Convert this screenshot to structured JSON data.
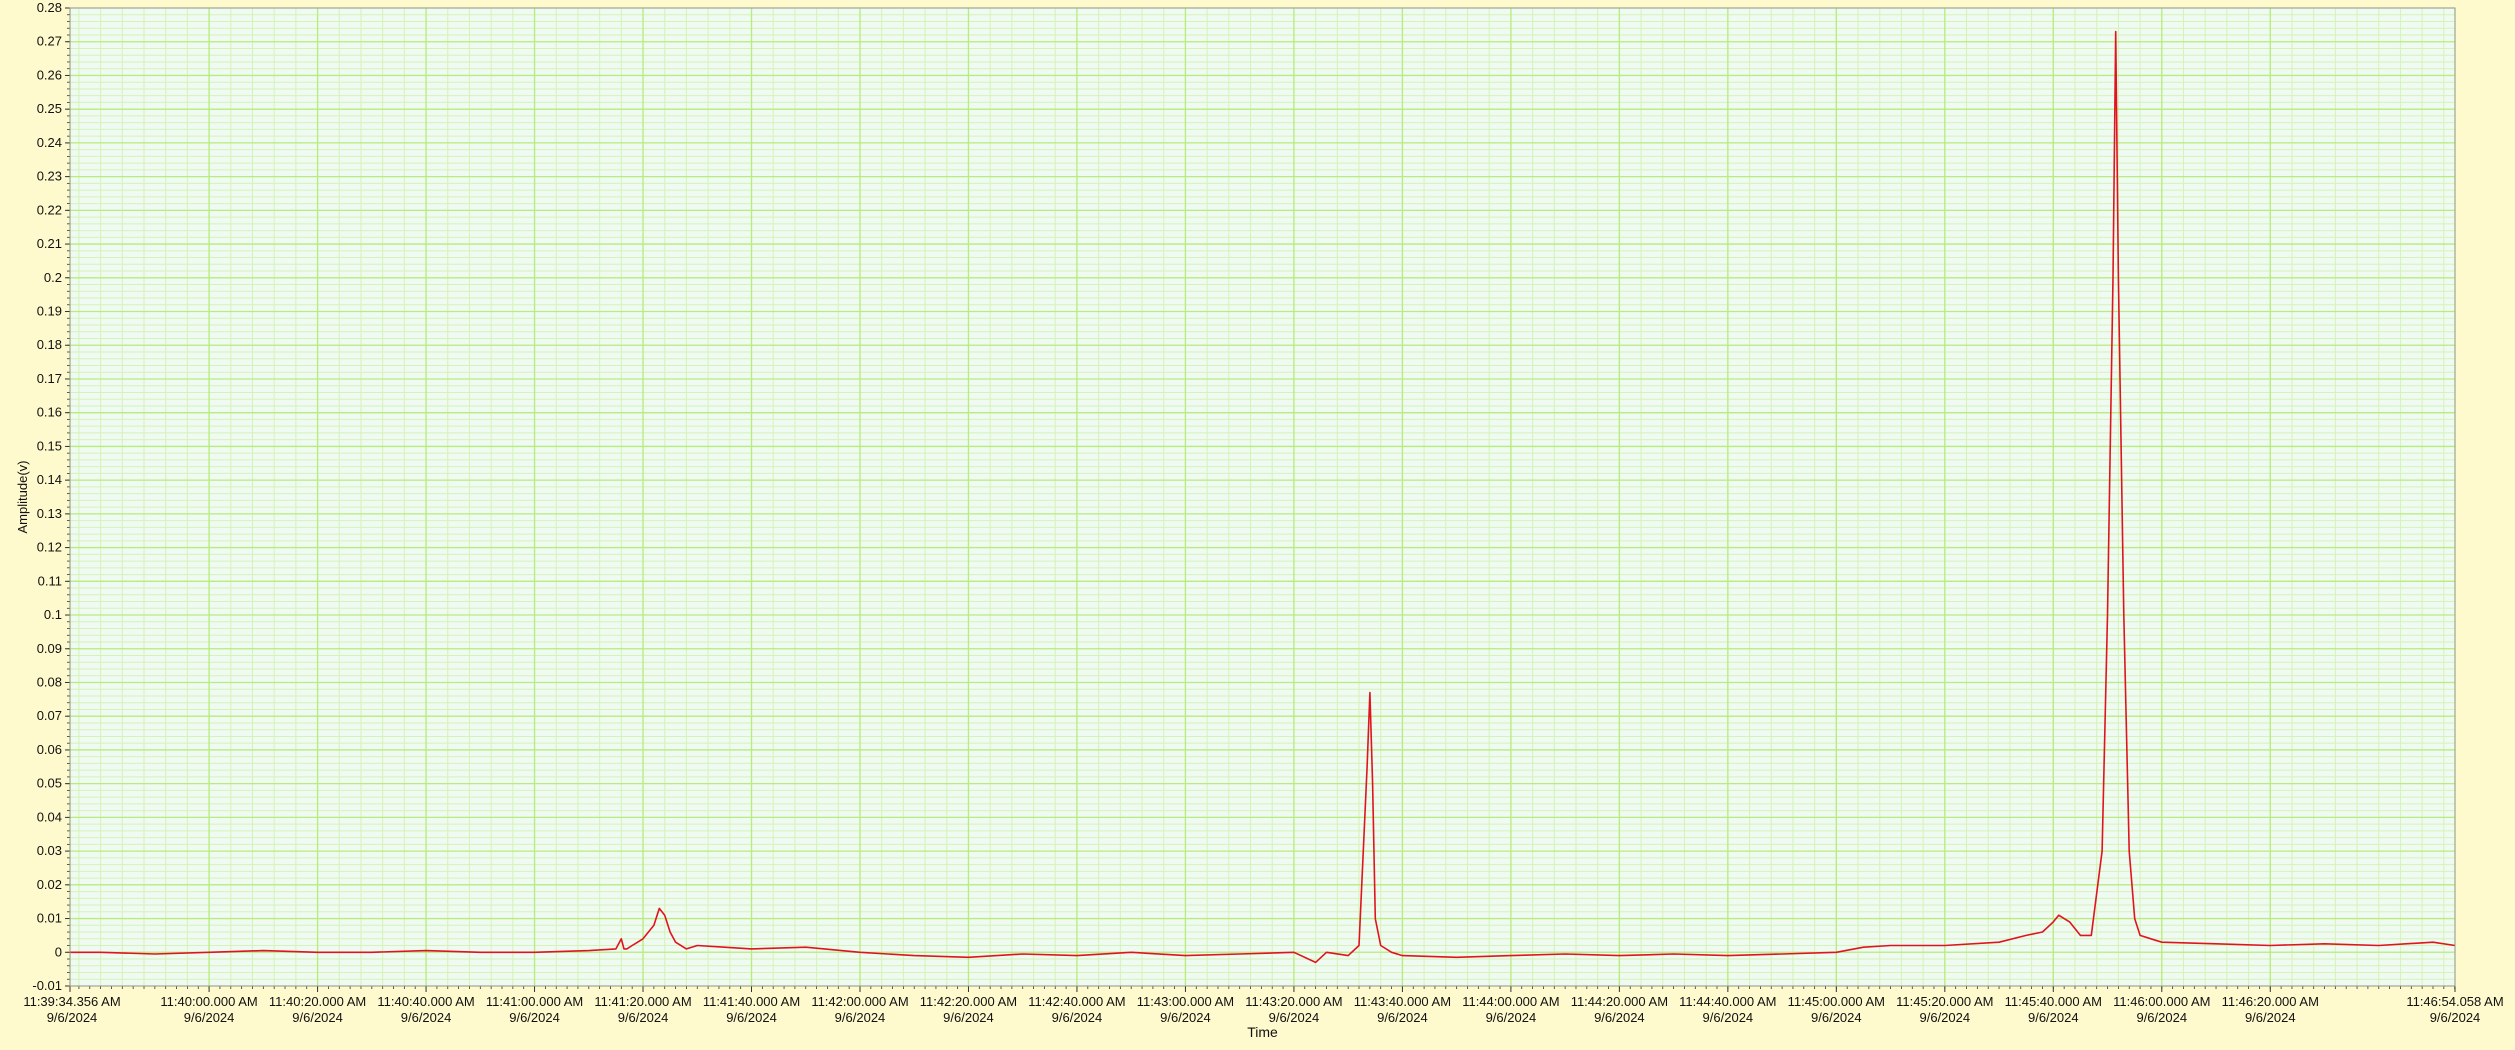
{
  "colors": {
    "background": "#fffacd",
    "plot_bg": "#eefaf2",
    "grid_major": "#b8ec7c",
    "grid_minor": "#d6f3b6",
    "series": "#e0141e",
    "axis": "#333333"
  },
  "chart_data": {
    "type": "line",
    "title": "",
    "xlabel": "Time",
    "ylabel": "Amplitude(v)",
    "ylim": [
      -0.01,
      0.28
    ],
    "xlim": [
      "11:39:34.356",
      "11:46:54.058"
    ],
    "grid": true,
    "y_ticks": [
      "-0.01",
      "0",
      "0.01",
      "0.02",
      "0.03",
      "0.04",
      "0.05",
      "0.06",
      "0.07",
      "0.08",
      "0.09",
      "0.1",
      "0.11",
      "0.12",
      "0.13",
      "0.14",
      "0.15",
      "0.16",
      "0.17",
      "0.18",
      "0.19",
      "0.2",
      "0.21",
      "0.22",
      "0.23",
      "0.24",
      "0.25",
      "0.26",
      "0.27",
      "0.28"
    ],
    "x_ticks": [
      {
        "time": "11:39:34.356",
        "label": "11:39:34.356 AM",
        "date": "9/6/2024"
      },
      {
        "time": "11:40:00.000",
        "label": "11:40:00.000 AM",
        "date": "9/6/2024"
      },
      {
        "time": "11:40:20.000",
        "label": "11:40:20.000 AM",
        "date": "9/6/2024"
      },
      {
        "time": "11:40:40.000",
        "label": "11:40:40.000 AM",
        "date": "9/6/2024"
      },
      {
        "time": "11:41:00.000",
        "label": "11:41:00.000 AM",
        "date": "9/6/2024"
      },
      {
        "time": "11:41:20.000",
        "label": "11:41:20.000 AM",
        "date": "9/6/2024"
      },
      {
        "time": "11:41:40.000",
        "label": "11:41:40.000 AM",
        "date": "9/6/2024"
      },
      {
        "time": "11:42:00.000",
        "label": "11:42:00.000 AM",
        "date": "9/6/2024"
      },
      {
        "time": "11:42:20.000",
        "label": "11:42:20.000 AM",
        "date": "9/6/2024"
      },
      {
        "time": "11:42:40.000",
        "label": "11:42:40.000 AM",
        "date": "9/6/2024"
      },
      {
        "time": "11:43:00.000",
        "label": "11:43:00.000 AM",
        "date": "9/6/2024"
      },
      {
        "time": "11:43:20.000",
        "label": "11:43:20.000 AM",
        "date": "9/6/2024"
      },
      {
        "time": "11:43:40.000",
        "label": "11:43:40.000 AM",
        "date": "9/6/2024"
      },
      {
        "time": "11:44:00.000",
        "label": "11:44:00.000 AM",
        "date": "9/6/2024"
      },
      {
        "time": "11:44:20.000",
        "label": "11:44:20.000 AM",
        "date": "9/6/2024"
      },
      {
        "time": "11:44:40.000",
        "label": "11:44:40.000 AM",
        "date": "9/6/2024"
      },
      {
        "time": "11:45:00.000",
        "label": "11:45:00.000 AM",
        "date": "9/6/2024"
      },
      {
        "time": "11:45:20.000",
        "label": "11:45:20.000 AM",
        "date": "9/6/2024"
      },
      {
        "time": "11:45:40.000",
        "label": "11:45:40.000 AM",
        "date": "9/6/2024"
      },
      {
        "time": "11:46:00.000",
        "label": "11:46:00.000 AM",
        "date": "9/6/2024"
      },
      {
        "time": "11:46:20.000",
        "label": "11:46:20.000 AM",
        "date": "9/6/2024"
      },
      {
        "time": "11:46:54.058",
        "label": "11:46:54.058 AM",
        "date": "9/6/2024"
      }
    ],
    "series": [
      {
        "x": [
          "11:39:34.356",
          "11:39:40.0",
          "11:39:50.0",
          "11:40:00.0",
          "11:40:10.0",
          "11:40:20.0",
          "11:40:30.0",
          "11:40:40.0",
          "11:40:50.0",
          "11:41:00.0",
          "11:41:10.0",
          "11:41:15.0",
          "11:41:16.0",
          "11:41:16.5",
          "11:41:17.0",
          "11:41:18.0",
          "11:41:20.0",
          "11:41:22.0",
          "11:41:23.0",
          "11:41:24.0",
          "11:41:25.0",
          "11:41:26.0",
          "11:41:28.0",
          "11:41:30.0",
          "11:41:35.0",
          "11:41:40.0",
          "11:41:50.0",
          "11:42:00.0",
          "11:42:10.0",
          "11:42:20.0",
          "11:42:30.0",
          "11:42:40.0",
          "11:42:50.0",
          "11:43:00.0",
          "11:43:10.0",
          "11:43:20.0",
          "11:43:24.0",
          "11:43:26.0",
          "11:43:30.0",
          "11:43:32.0",
          "11:43:33.5",
          "11:43:34.0",
          "11:43:34.5",
          "11:43:35.0",
          "11:43:36.0",
          "11:43:38.0",
          "11:43:40.0",
          "11:43:50.0",
          "11:44:00.0",
          "11:44:10.0",
          "11:44:20.0",
          "11:44:30.0",
          "11:44:40.0",
          "11:44:50.0",
          "11:45:00.0",
          "11:45:05.0",
          "11:45:10.0",
          "11:45:20.0",
          "11:45:30.0",
          "11:45:35.0",
          "11:45:38.0",
          "11:45:40.0",
          "11:45:41.0",
          "11:45:43.0",
          "11:45:45.0",
          "11:45:47.0",
          "11:45:49.0",
          "11:45:50.0",
          "11:45:51.0",
          "11:45:51.5",
          "11:45:52.0",
          "11:45:53.0",
          "11:45:54.0",
          "11:45:55.0",
          "11:45:56.0",
          "11:45:58.0",
          "11:46:00.0",
          "11:46:10.0",
          "11:46:20.0",
          "11:46:30.0",
          "11:46:40.0",
          "11:46:50.0",
          "11:46:54.058"
        ],
        "y": [
          0.0,
          0.0,
          -0.0005,
          0.0,
          0.0005,
          0.0,
          0.0,
          0.0005,
          0.0,
          0.0,
          0.0005,
          0.001,
          0.004,
          0.001,
          0.001,
          0.002,
          0.004,
          0.008,
          0.013,
          0.011,
          0.006,
          0.003,
          0.001,
          0.002,
          0.0015,
          0.001,
          0.0015,
          0.0,
          -0.001,
          -0.0015,
          -0.0005,
          -0.001,
          0.0,
          -0.001,
          -0.0005,
          0.0,
          -0.003,
          0.0,
          -0.001,
          0.002,
          0.055,
          0.077,
          0.05,
          0.01,
          0.002,
          0.0,
          -0.001,
          -0.0015,
          -0.001,
          -0.0005,
          -0.001,
          -0.0005,
          -0.001,
          -0.0005,
          0.0,
          0.0015,
          0.002,
          0.002,
          0.003,
          0.005,
          0.006,
          0.009,
          0.011,
          0.009,
          0.005,
          0.005,
          0.03,
          0.1,
          0.2,
          0.273,
          0.2,
          0.1,
          0.03,
          0.01,
          0.005,
          0.004,
          0.003,
          0.0025,
          0.002,
          0.0025,
          0.002,
          0.003,
          0.002
        ]
      }
    ]
  }
}
